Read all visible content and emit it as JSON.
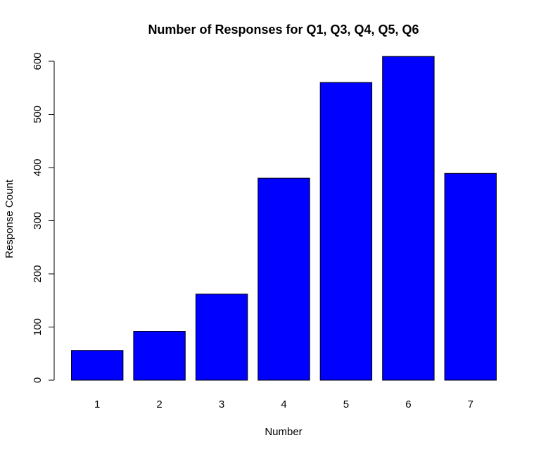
{
  "chart_data": {
    "type": "bar",
    "title": "Number of Responses for Q1, Q3, Q4, Q5, Q6",
    "xlabel": "Number",
    "ylabel": "Response Count",
    "categories": [
      "1",
      "2",
      "3",
      "4",
      "5",
      "6",
      "7"
    ],
    "values": [
      56,
      92,
      162,
      380,
      560,
      609,
      389
    ],
    "ylim": [
      0,
      600
    ],
    "yticks": [
      0,
      100,
      200,
      300,
      400,
      500,
      600
    ],
    "grid": false,
    "colors": {
      "bar_fill": "#0000ff",
      "bar_stroke": "#000000"
    }
  }
}
